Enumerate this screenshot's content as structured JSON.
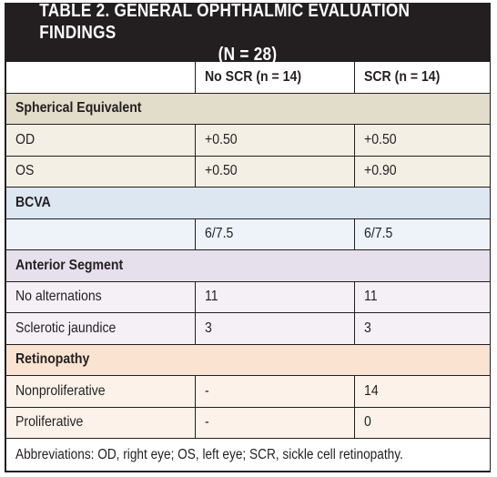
{
  "title": {
    "line1": "TABLE 2. GENERAL OPHTHALMIC EVALUATION FINDINGS",
    "line2": "(N = 28)"
  },
  "columns": [
    "",
    "No SCR (n = 14)",
    "SCR (n = 14)"
  ],
  "sections": [
    {
      "heading": "Spherical Equivalent",
      "rows": [
        {
          "label": "OD",
          "no_scr": "+0.50",
          "scr": "+0.50"
        },
        {
          "label": "OS",
          "no_scr": "+0.50",
          "scr": "+0.90"
        }
      ]
    },
    {
      "heading": "BCVA",
      "rows": [
        {
          "label": "",
          "no_scr": "6/7.5",
          "scr": "6/7.5"
        }
      ]
    },
    {
      "heading": "Anterior Segment",
      "rows": [
        {
          "label": "No alternations",
          "no_scr": "11",
          "scr": "11"
        },
        {
          "label": "Sclerotic jaundice",
          "no_scr": "3",
          "scr": "3"
        }
      ]
    },
    {
      "heading": "Retinopathy",
      "rows": [
        {
          "label": "Nonproliferative",
          "no_scr": "-",
          "scr": "14"
        },
        {
          "label": "Proliferative",
          "no_scr": "-",
          "scr": "0"
        }
      ]
    }
  ],
  "footnote": "Abbreviations: OD, right eye; OS, left eye; SCR, sickle cell retinopathy.",
  "colors": {
    "title_bg": "#231f20",
    "spherical_heading": "#e2dccb",
    "spherical_rows": "#f3efe4",
    "bcva_heading": "#dce7f2",
    "bcva_rows": "#edf3f9",
    "anterior_heading": "#e6dfec",
    "anterior_rows": "#f4f0f6",
    "retinopathy_heading": "#fbe3d2",
    "retinopathy_rows": "#fdf2ea"
  }
}
